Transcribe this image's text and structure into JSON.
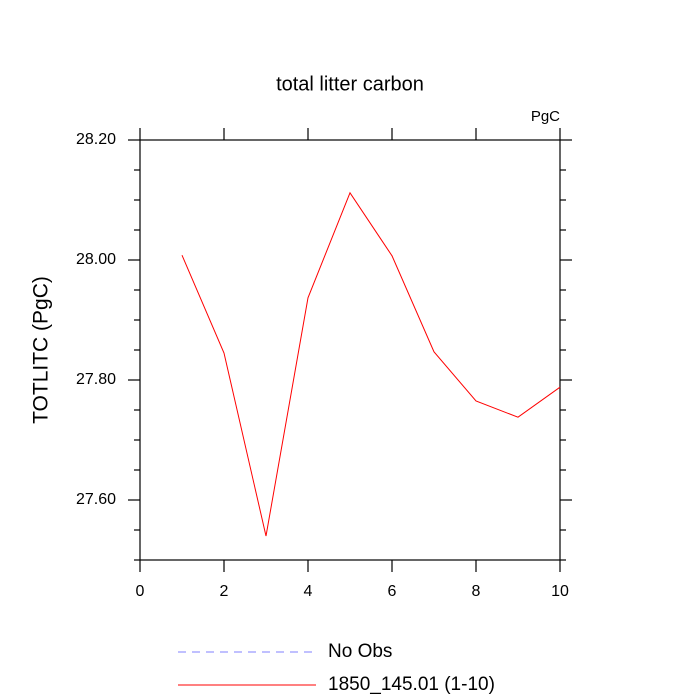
{
  "chart_data": {
    "type": "line",
    "title": "total litter carbon",
    "units": "PgC",
    "y_label": "TOTLITC  (PgC)",
    "x": [
      1,
      2,
      3,
      4,
      5,
      6,
      7,
      8,
      9,
      10
    ],
    "series": [
      {
        "name": "No Obs",
        "color": "#8080ff",
        "dashed": true,
        "values": [
          null,
          null,
          null,
          null,
          null,
          null,
          null,
          null,
          null,
          null
        ]
      },
      {
        "name": "1850_145.01 (1-10)",
        "color": "#ff0000",
        "dashed": false,
        "values": [
          28.008,
          27.845,
          27.54,
          27.937,
          28.112,
          28.007,
          27.847,
          27.765,
          27.738,
          27.788
        ]
      }
    ],
    "xlim": [
      0,
      10
    ],
    "xticks": [
      0,
      2,
      4,
      6,
      8,
      10
    ],
    "ylim": [
      27.5,
      28.2
    ],
    "yticks": [
      {
        "value": 27.6,
        "label": "27.60"
      },
      {
        "value": 27.8,
        "label": "27.80"
      },
      {
        "value": 28.0,
        "label": "28.00"
      },
      {
        "value": 28.2,
        "label": "28.20"
      }
    ],
    "y_minor_ticks": [
      27.5,
      27.55,
      27.65,
      27.7,
      27.75,
      27.85,
      27.9,
      27.95,
      28.05,
      28.1,
      28.15
    ]
  }
}
